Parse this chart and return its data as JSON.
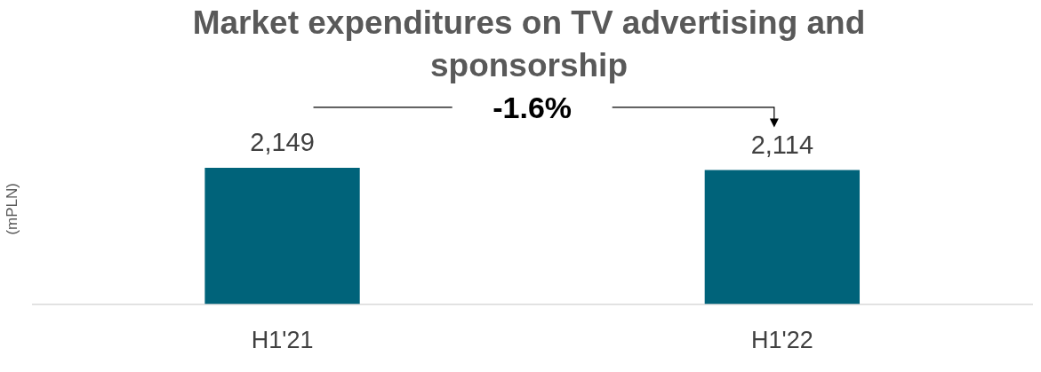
{
  "chart_data": {
    "type": "bar",
    "title": "Market expenditures on TV advertising and sponsorship",
    "ylabel": "(mPLN)",
    "categories": [
      "H1'21",
      "H1'22"
    ],
    "values": [
      2149,
      2114
    ],
    "color": "#00637a",
    "value_labels": [
      "2,149",
      "2,114"
    ],
    "annotations": [
      "-1.6%"
    ]
  }
}
